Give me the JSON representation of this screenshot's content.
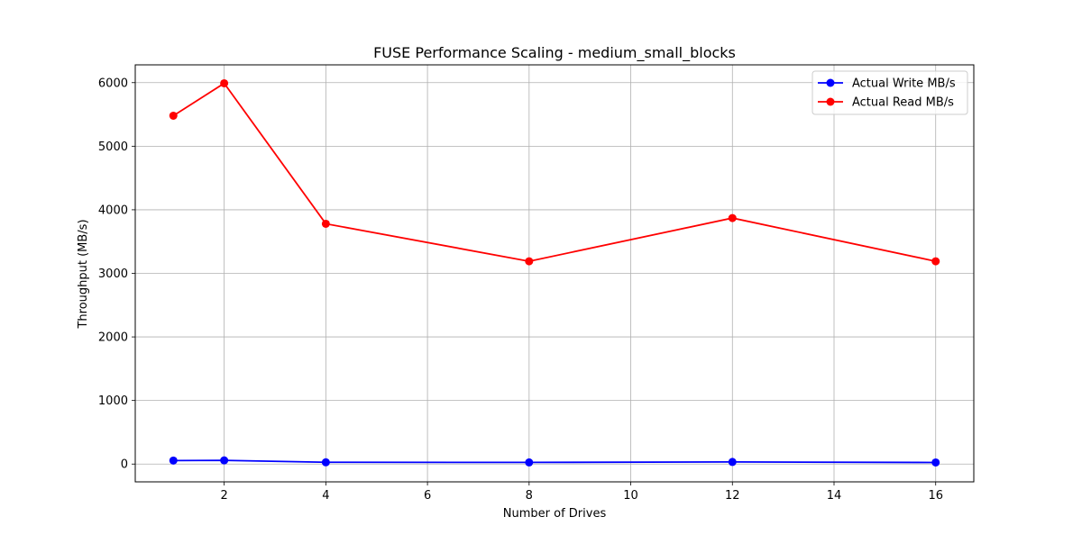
{
  "chart_data": {
    "type": "line",
    "title": "FUSE Performance Scaling - medium_small_blocks",
    "xlabel": "Number of Drives",
    "ylabel": "Throughput (MB/s)",
    "xlim": [
      0.25,
      16.75
    ],
    "ylim": [
      -280,
      6280
    ],
    "xticks": [
      2,
      4,
      6,
      8,
      10,
      12,
      14,
      16
    ],
    "yticks": [
      0,
      1000,
      2000,
      3000,
      4000,
      5000,
      6000
    ],
    "grid": true,
    "legend_position": "upper right",
    "x": [
      1,
      2,
      4,
      8,
      12,
      16
    ],
    "series": [
      {
        "name": "Actual Write MB/s",
        "color": "#0000ff",
        "marker": "circle",
        "values": [
          55,
          58,
          28,
          26,
          33,
          25
        ]
      },
      {
        "name": "Actual Read MB/s",
        "color": "#ff0000",
        "marker": "circle",
        "values": [
          5480,
          5990,
          3780,
          3190,
          3870,
          3190
        ]
      }
    ]
  }
}
